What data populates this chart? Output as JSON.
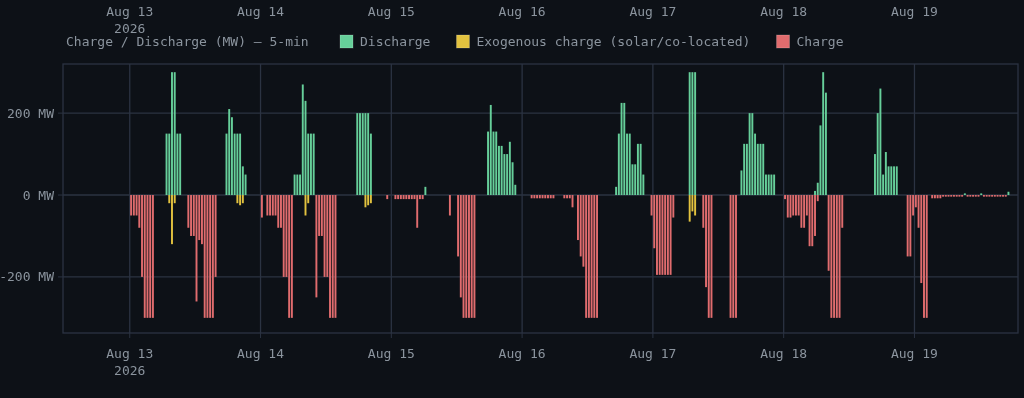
{
  "chart_data": {
    "type": "bar",
    "title": "Charge / Discharge (MW) — 5-min",
    "xlim": [
      "2026-08-12T11:45",
      "2026-08-19T19:00"
    ],
    "xticks": [
      {
        "value": "2026-08-13",
        "label": "Aug 13\n2026"
      },
      {
        "value": "2026-08-14",
        "label": "Aug 14"
      },
      {
        "value": "2026-08-15",
        "label": "Aug 15"
      },
      {
        "value": "2026-08-16",
        "label": "Aug 16"
      },
      {
        "value": "2026-08-17",
        "label": "Aug 17"
      },
      {
        "value": "2026-08-18",
        "label": "Aug 18"
      },
      {
        "value": "2026-08-19",
        "label": "Aug 19"
      }
    ],
    "x2lim": [
      "2026-08-12T11:45",
      "2026-08-19T19:00"
    ],
    "x2ticks": [
      {
        "value": "2026-08-13",
        "label": "Aug 13\n2026"
      },
      {
        "value": "2026-08-14",
        "label": "Aug 14"
      },
      {
        "value": "2026-08-15",
        "label": "Aug 15"
      },
      {
        "value": "2026-08-16",
        "label": "Aug 16"
      },
      {
        "value": "2026-08-17",
        "label": "Aug 17"
      },
      {
        "value": "2026-08-18",
        "label": "Aug 18"
      },
      {
        "value": "2026-08-19",
        "label": "Aug 19"
      }
    ],
    "ylim": [
      -337,
      320
    ],
    "yticks": [
      {
        "value": -200,
        "label": "-200 MW"
      },
      {
        "value": 0,
        "label": "0 MW"
      },
      {
        "value": 200,
        "label": "200 MW"
      }
    ],
    "grid": true,
    "legend": "top",
    "series": [
      {
        "name": "Discharge",
        "color": "#66cf9a",
        "x": [
          "2026-08-13T06:30",
          "2026-08-13T07:00",
          "2026-08-13T07:30",
          "2026-08-13T08:00",
          "2026-08-13T08:30",
          "2026-08-13T09:00",
          "2026-08-13T17:30",
          "2026-08-13T18:00",
          "2026-08-13T18:30",
          "2026-08-13T19:00",
          "2026-08-13T19:30",
          "2026-08-13T20:00",
          "2026-08-13T20:30",
          "2026-08-13T21:00",
          "2026-08-14T06:00",
          "2026-08-14T06:30",
          "2026-08-14T07:00",
          "2026-08-14T07:30",
          "2026-08-14T08:00",
          "2026-08-14T08:30",
          "2026-08-14T09:00",
          "2026-08-14T09:30",
          "2026-08-14T17:30",
          "2026-08-14T18:00",
          "2026-08-14T18:30",
          "2026-08-14T19:00",
          "2026-08-14T19:30",
          "2026-08-14T20:00",
          "2026-08-15T06:00",
          "2026-08-15T17:30",
          "2026-08-15T18:00",
          "2026-08-15T18:30",
          "2026-08-15T19:00",
          "2026-08-15T19:30",
          "2026-08-15T20:00",
          "2026-08-15T20:30",
          "2026-08-15T21:00",
          "2026-08-15T21:30",
          "2026-08-15T22:00",
          "2026-08-15T22:30",
          "2026-08-16T17:00",
          "2026-08-16T17:30",
          "2026-08-16T18:00",
          "2026-08-16T18:30",
          "2026-08-16T19:00",
          "2026-08-16T19:30",
          "2026-08-16T20:00",
          "2026-08-16T20:30",
          "2026-08-16T21:00",
          "2026-08-16T21:30",
          "2026-08-16T22:00",
          "2026-08-17T06:30",
          "2026-08-17T07:00",
          "2026-08-17T07:30",
          "2026-08-17T16:00",
          "2026-08-17T16:30",
          "2026-08-17T17:00",
          "2026-08-17T17:30",
          "2026-08-17T18:00",
          "2026-08-17T18:30",
          "2026-08-17T19:00",
          "2026-08-17T19:30",
          "2026-08-17T20:00",
          "2026-08-17T20:30",
          "2026-08-17T21:00",
          "2026-08-17T21:30",
          "2026-08-17T22:00",
          "2026-08-18T05:30",
          "2026-08-18T06:00",
          "2026-08-18T06:30",
          "2026-08-18T07:00",
          "2026-08-18T07:30",
          "2026-08-18T16:30",
          "2026-08-18T17:00",
          "2026-08-18T17:30",
          "2026-08-18T18:00",
          "2026-08-18T18:30",
          "2026-08-18T19:00",
          "2026-08-18T19:30",
          "2026-08-18T20:00",
          "2026-08-18T20:30",
          "2026-08-19T09:00",
          "2026-08-19T12:00",
          "2026-08-19T17:00"
        ],
        "values": [
          150,
          150,
          300,
          300,
          150,
          150,
          150,
          210,
          190,
          150,
          150,
          150,
          70,
          50,
          50,
          50,
          50,
          270,
          230,
          150,
          150,
          150,
          200,
          200,
          200,
          200,
          200,
          150,
          20,
          155,
          220,
          155,
          155,
          120,
          120,
          100,
          100,
          130,
          80,
          25,
          20,
          150,
          225,
          225,
          150,
          150,
          75,
          75,
          125,
          125,
          50,
          300,
          300,
          300,
          60,
          125,
          125,
          200,
          200,
          150,
          125,
          125,
          125,
          50,
          50,
          50,
          50,
          10,
          30,
          170,
          300,
          250,
          100,
          200,
          260,
          50,
          105,
          70,
          70,
          70,
          70,
          4,
          4,
          8
        ]
      },
      {
        "name": "Exogenous charge (solar/co-located)",
        "color": "#e2c23f",
        "x": [
          "2026-08-13T07:00",
          "2026-08-13T07:30",
          "2026-08-13T08:00",
          "2026-08-13T19:30",
          "2026-08-13T20:00",
          "2026-08-13T20:30",
          "2026-08-14T08:00",
          "2026-08-14T08:30",
          "2026-08-14T19:00",
          "2026-08-14T19:30",
          "2026-08-14T20:00",
          "2026-08-17T06:30",
          "2026-08-17T07:00",
          "2026-08-17T07:30"
        ],
        "values": [
          -20,
          -120,
          -20,
          -20,
          -25,
          -20,
          -50,
          -20,
          -30,
          -25,
          -20,
          -65,
          -40,
          -50
        ]
      },
      {
        "name": "Charge",
        "color": "#e06c6e",
        "x": [
          "2026-08-13T00:00",
          "2026-08-13T00:30",
          "2026-08-13T01:00",
          "2026-08-13T01:30",
          "2026-08-13T02:00",
          "2026-08-13T02:30",
          "2026-08-13T03:00",
          "2026-08-13T03:30",
          "2026-08-13T04:00",
          "2026-08-13T10:30",
          "2026-08-13T11:00",
          "2026-08-13T11:30",
          "2026-08-13T12:00",
          "2026-08-13T12:30",
          "2026-08-13T13:00",
          "2026-08-13T13:30",
          "2026-08-13T14:00",
          "2026-08-13T14:30",
          "2026-08-13T15:00",
          "2026-08-13T15:30",
          "2026-08-14T00:00",
          "2026-08-14T01:00",
          "2026-08-14T01:30",
          "2026-08-14T02:00",
          "2026-08-14T02:30",
          "2026-08-14T03:00",
          "2026-08-14T03:30",
          "2026-08-14T04:00",
          "2026-08-14T04:30",
          "2026-08-14T05:00",
          "2026-08-14T05:30",
          "2026-08-14T10:00",
          "2026-08-14T10:30",
          "2026-08-14T11:00",
          "2026-08-14T11:30",
          "2026-08-14T12:00",
          "2026-08-14T12:30",
          "2026-08-14T13:00",
          "2026-08-14T13:30",
          "2026-08-14T23:00",
          "2026-08-15T00:30",
          "2026-08-15T01:00",
          "2026-08-15T01:30",
          "2026-08-15T02:00",
          "2026-08-15T02:30",
          "2026-08-15T03:00",
          "2026-08-15T03:30",
          "2026-08-15T04:00",
          "2026-08-15T04:30",
          "2026-08-15T05:00",
          "2026-08-15T05:30",
          "2026-08-15T10:30",
          "2026-08-15T12:00",
          "2026-08-15T12:30",
          "2026-08-15T13:00",
          "2026-08-15T13:30",
          "2026-08-15T14:00",
          "2026-08-15T14:30",
          "2026-08-15T15:00",
          "2026-08-16T01:30",
          "2026-08-16T02:00",
          "2026-08-16T02:30",
          "2026-08-16T03:00",
          "2026-08-16T03:30",
          "2026-08-16T04:00",
          "2026-08-16T04:30",
          "2026-08-16T05:00",
          "2026-08-16T05:30",
          "2026-08-16T07:30",
          "2026-08-16T08:00",
          "2026-08-16T08:30",
          "2026-08-16T09:00",
          "2026-08-16T10:00",
          "2026-08-16T10:30",
          "2026-08-16T11:00",
          "2026-08-16T11:30",
          "2026-08-16T12:00",
          "2026-08-16T12:30",
          "2026-08-16T13:00",
          "2026-08-16T13:30",
          "2026-08-16T23:30",
          "2026-08-17T00:00",
          "2026-08-17T00:30",
          "2026-08-17T01:00",
          "2026-08-17T01:30",
          "2026-08-17T02:00",
          "2026-08-17T02:30",
          "2026-08-17T03:00",
          "2026-08-17T03:30",
          "2026-08-17T09:00",
          "2026-08-17T09:30",
          "2026-08-17T10:00",
          "2026-08-17T10:30",
          "2026-08-17T14:00",
          "2026-08-17T14:30",
          "2026-08-17T15:00",
          "2026-08-18T00:00",
          "2026-08-18T00:30",
          "2026-08-18T01:00",
          "2026-08-18T01:30",
          "2026-08-18T02:00",
          "2026-08-18T02:30",
          "2026-08-18T03:00",
          "2026-08-18T03:30",
          "2026-08-18T04:00",
          "2026-08-18T04:30",
          "2026-08-18T05:00",
          "2026-08-18T05:30",
          "2026-08-18T06:00",
          "2026-08-18T08:00",
          "2026-08-18T08:30",
          "2026-08-18T09:00",
          "2026-08-18T09:30",
          "2026-08-18T10:00",
          "2026-08-18T10:30",
          "2026-08-18T22:30",
          "2026-08-18T23:00",
          "2026-08-18T23:30",
          "2026-08-19T00:00",
          "2026-08-19T00:30",
          "2026-08-19T01:00",
          "2026-08-19T01:30",
          "2026-08-19T02:00",
          "2026-08-19T03:00",
          "2026-08-19T03:30",
          "2026-08-19T04:00",
          "2026-08-19T04:30",
          "2026-08-19T05:00",
          "2026-08-19T05:30",
          "2026-08-19T06:00",
          "2026-08-19T06:30",
          "2026-08-19T07:00",
          "2026-08-19T07:30",
          "2026-08-19T08:00",
          "2026-08-19T08:30",
          "2026-08-19T09:30",
          "2026-08-19T10:00",
          "2026-08-19T10:30",
          "2026-08-19T11:00",
          "2026-08-19T11:30",
          "2026-08-19T12:30",
          "2026-08-19T13:00",
          "2026-08-19T13:30",
          "2026-08-19T14:00",
          "2026-08-19T14:30",
          "2026-08-19T15:00",
          "2026-08-19T15:30",
          "2026-08-19T16:00",
          "2026-08-19T16:30"
        ],
        "values": [
          -50,
          -50,
          -50,
          -80,
          -200,
          -300,
          -300,
          -300,
          -300,
          -80,
          -100,
          -100,
          -260,
          -110,
          -120,
          -300,
          -300,
          -300,
          -300,
          -200,
          -55,
          -50,
          -50,
          -50,
          -50,
          -80,
          -80,
          -200,
          -200,
          -300,
          -300,
          -250,
          -100,
          -100,
          -200,
          -200,
          -300,
          -300,
          -300,
          -10,
          -10,
          -10,
          -10,
          -10,
          -10,
          -10,
          -10,
          -10,
          -80,
          -10,
          -10,
          -50,
          -150,
          -250,
          -300,
          -300,
          -300,
          -300,
          -300,
          -8,
          -8,
          -8,
          -8,
          -8,
          -8,
          -8,
          -8,
          -8,
          -8,
          -8,
          -8,
          -30,
          -110,
          -150,
          -175,
          -300,
          -300,
          -300,
          -300,
          -300,
          -50,
          -130,
          -195,
          -195,
          -195,
          -195,
          -195,
          -195,
          -55,
          -80,
          -225,
          -300,
          -300,
          -300,
          -300,
          -300,
          -10,
          -55,
          -55,
          -50,
          -50,
          -50,
          -80,
          -80,
          -50,
          -125,
          -125,
          -100,
          -15,
          -185,
          -300,
          -300,
          -300,
          -300,
          -80,
          -150,
          -150,
          -50,
          -30,
          -80,
          -215,
          -300,
          -300,
          -8,
          -8,
          -8,
          -8,
          -4,
          -4,
          -4,
          -4,
          -4,
          -4,
          -4,
          -4,
          -4,
          -4,
          -4,
          -4,
          -4,
          -4,
          -4,
          -4,
          -4,
          -4,
          -4,
          -4,
          -4,
          -4
        ]
      }
    ]
  }
}
